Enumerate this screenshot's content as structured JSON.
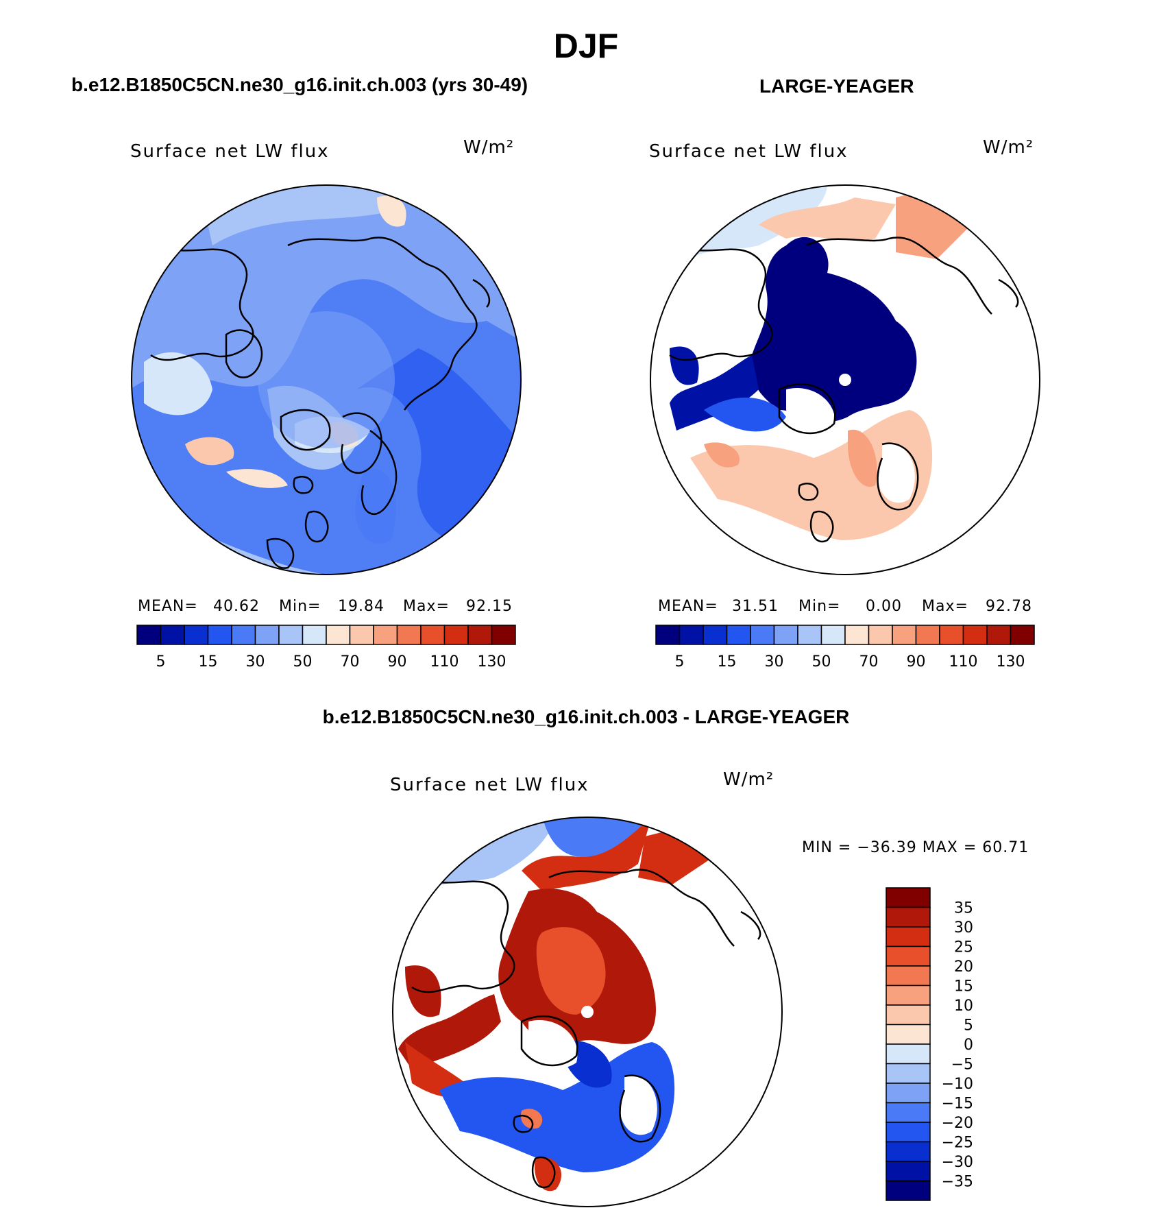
{
  "figure": {
    "title": "DJF",
    "difference_title": "b.e12.B1850C5CN.ne30_g16.init.ch.003 - LARGE-YEAGER"
  },
  "chart_data": [
    {
      "type": "heatmap",
      "case": "b.e12.B1850C5CN.ne30_g16.init.ch.003 (yrs 30-49)",
      "title": "Surface net LW flux",
      "units": "W/m²",
      "stats": {
        "mean_label": "MEAN=",
        "mean": "40.62",
        "min_label": "Min=",
        "min": "19.84",
        "max_label": "Max=",
        "max": "92.15"
      },
      "colorbar": {
        "orientation": "horizontal",
        "tick_labels": [
          "5",
          "15",
          "30",
          "50",
          "70",
          "90",
          "110",
          "130"
        ],
        "colors": [
          "#00007f",
          "#0012a6",
          "#0a2fd0",
          "#2356f0",
          "#4a7af5",
          "#7ea2f5",
          "#a9c4f7",
          "#d6e7fa",
          "#fde5d3",
          "#fcc8ad",
          "#f8a17f",
          "#f27851",
          "#e8502b",
          "#d42e12",
          "#b0190a",
          "#800000"
        ]
      }
    },
    {
      "type": "heatmap",
      "case": "LARGE-YEAGER",
      "title": "Surface net LW flux",
      "units": "W/m²",
      "stats": {
        "mean_label": "MEAN=",
        "mean": "31.51",
        "min_label": "Min=",
        "min": "0.00",
        "max_label": "Max=",
        "max": "92.78"
      },
      "colorbar": {
        "orientation": "horizontal",
        "tick_labels": [
          "5",
          "15",
          "30",
          "50",
          "70",
          "90",
          "110",
          "130"
        ],
        "colors": [
          "#00007f",
          "#0012a6",
          "#0a2fd0",
          "#2356f0",
          "#4a7af5",
          "#7ea2f5",
          "#a9c4f7",
          "#d6e7fa",
          "#fde5d3",
          "#fcc8ad",
          "#f8a17f",
          "#f27851",
          "#e8502b",
          "#d42e12",
          "#b0190a",
          "#800000"
        ]
      }
    },
    {
      "type": "heatmap",
      "case": "b.e12.B1850C5CN.ne30_g16.init.ch.003 - LARGE-YEAGER",
      "title": "Surface net LW flux",
      "units": "W/m²",
      "stats": {
        "text": "MIN = −36.39 MAX =  60.71"
      },
      "colorbar": {
        "orientation": "vertical",
        "tick_labels": [
          "35",
          "30",
          "25",
          "20",
          "15",
          "10",
          "5",
          "0",
          "−5",
          "−10",
          "−15",
          "−20",
          "−25",
          "−30",
          "−35"
        ],
        "colors": [
          "#800000",
          "#b0190a",
          "#d42e12",
          "#e8502b",
          "#f27851",
          "#f8a17f",
          "#fcc8ad",
          "#fde5d3",
          "#d6e7fa",
          "#a9c4f7",
          "#7ea2f5",
          "#4a7af5",
          "#2356f0",
          "#0a2fd0",
          "#0012a6",
          "#00007f"
        ]
      }
    }
  ]
}
